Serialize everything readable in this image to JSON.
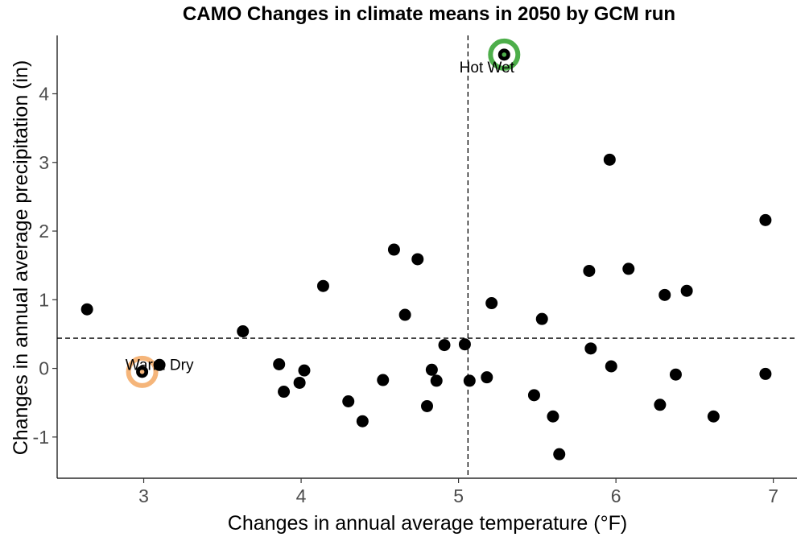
{
  "chart_data": {
    "type": "scatter",
    "title": "CAMO Changes in climate means in 2050 by GCM run",
    "xlabel": "Changes in annual average temperature (°F)",
    "ylabel": "Changes in annual average precipitation (in)",
    "xlim": [
      2.45,
      7.15
    ],
    "ylim": [
      -1.6,
      4.85
    ],
    "xticks": [
      "3",
      "4",
      "5",
      "6",
      "7"
    ],
    "yticks": [
      "-1",
      "0",
      "1",
      "2",
      "3",
      "4"
    ],
    "grid": false,
    "reference_lines": {
      "x": 5.06,
      "y": 0.44
    },
    "points": [
      {
        "x": 2.64,
        "y": 0.86
      },
      {
        "x": 2.99,
        "y": -0.05
      },
      {
        "x": 3.1,
        "y": 0.05
      },
      {
        "x": 3.63,
        "y": 0.54
      },
      {
        "x": 3.86,
        "y": 0.06
      },
      {
        "x": 3.89,
        "y": -0.34
      },
      {
        "x": 3.99,
        "y": -0.21
      },
      {
        "x": 4.02,
        "y": -0.03
      },
      {
        "x": 4.14,
        "y": 1.2
      },
      {
        "x": 4.3,
        "y": -0.48
      },
      {
        "x": 4.39,
        "y": -0.77
      },
      {
        "x": 4.52,
        "y": -0.17
      },
      {
        "x": 4.59,
        "y": 1.73
      },
      {
        "x": 4.66,
        "y": 0.78
      },
      {
        "x": 4.74,
        "y": 1.59
      },
      {
        "x": 4.8,
        "y": -0.55
      },
      {
        "x": 4.83,
        "y": -0.02
      },
      {
        "x": 4.86,
        "y": -0.18
      },
      {
        "x": 4.91,
        "y": 0.34
      },
      {
        "x": 5.04,
        "y": 0.35
      },
      {
        "x": 5.07,
        "y": -0.18
      },
      {
        "x": 5.18,
        "y": -0.13
      },
      {
        "x": 5.21,
        "y": 0.95
      },
      {
        "x": 5.29,
        "y": 4.57
      },
      {
        "x": 5.48,
        "y": -0.39
      },
      {
        "x": 5.53,
        "y": 0.72
      },
      {
        "x": 5.6,
        "y": -0.7
      },
      {
        "x": 5.64,
        "y": -1.25
      },
      {
        "x": 5.83,
        "y": 1.42
      },
      {
        "x": 5.84,
        "y": 0.29
      },
      {
        "x": 5.96,
        "y": 3.04
      },
      {
        "x": 5.97,
        "y": 0.03
      },
      {
        "x": 6.08,
        "y": 1.45
      },
      {
        "x": 6.28,
        "y": -0.53
      },
      {
        "x": 6.31,
        "y": 1.07
      },
      {
        "x": 6.38,
        "y": -0.09
      },
      {
        "x": 6.45,
        "y": 1.13
      },
      {
        "x": 6.62,
        "y": -0.7
      },
      {
        "x": 6.95,
        "y": 2.16
      },
      {
        "x": 6.95,
        "y": -0.08
      }
    ],
    "highlights": [
      {
        "label": "Warm Dry",
        "x": 2.99,
        "y": -0.05,
        "color": "#F5B57A",
        "label_dx": 0.11,
        "label_dy": 0.11
      },
      {
        "label": "Hot Wet",
        "x": 5.29,
        "y": 4.57,
        "color": "#4DAE4A",
        "label_dx": -0.11,
        "label_dy": -0.18
      }
    ],
    "point_color": "#000000"
  }
}
